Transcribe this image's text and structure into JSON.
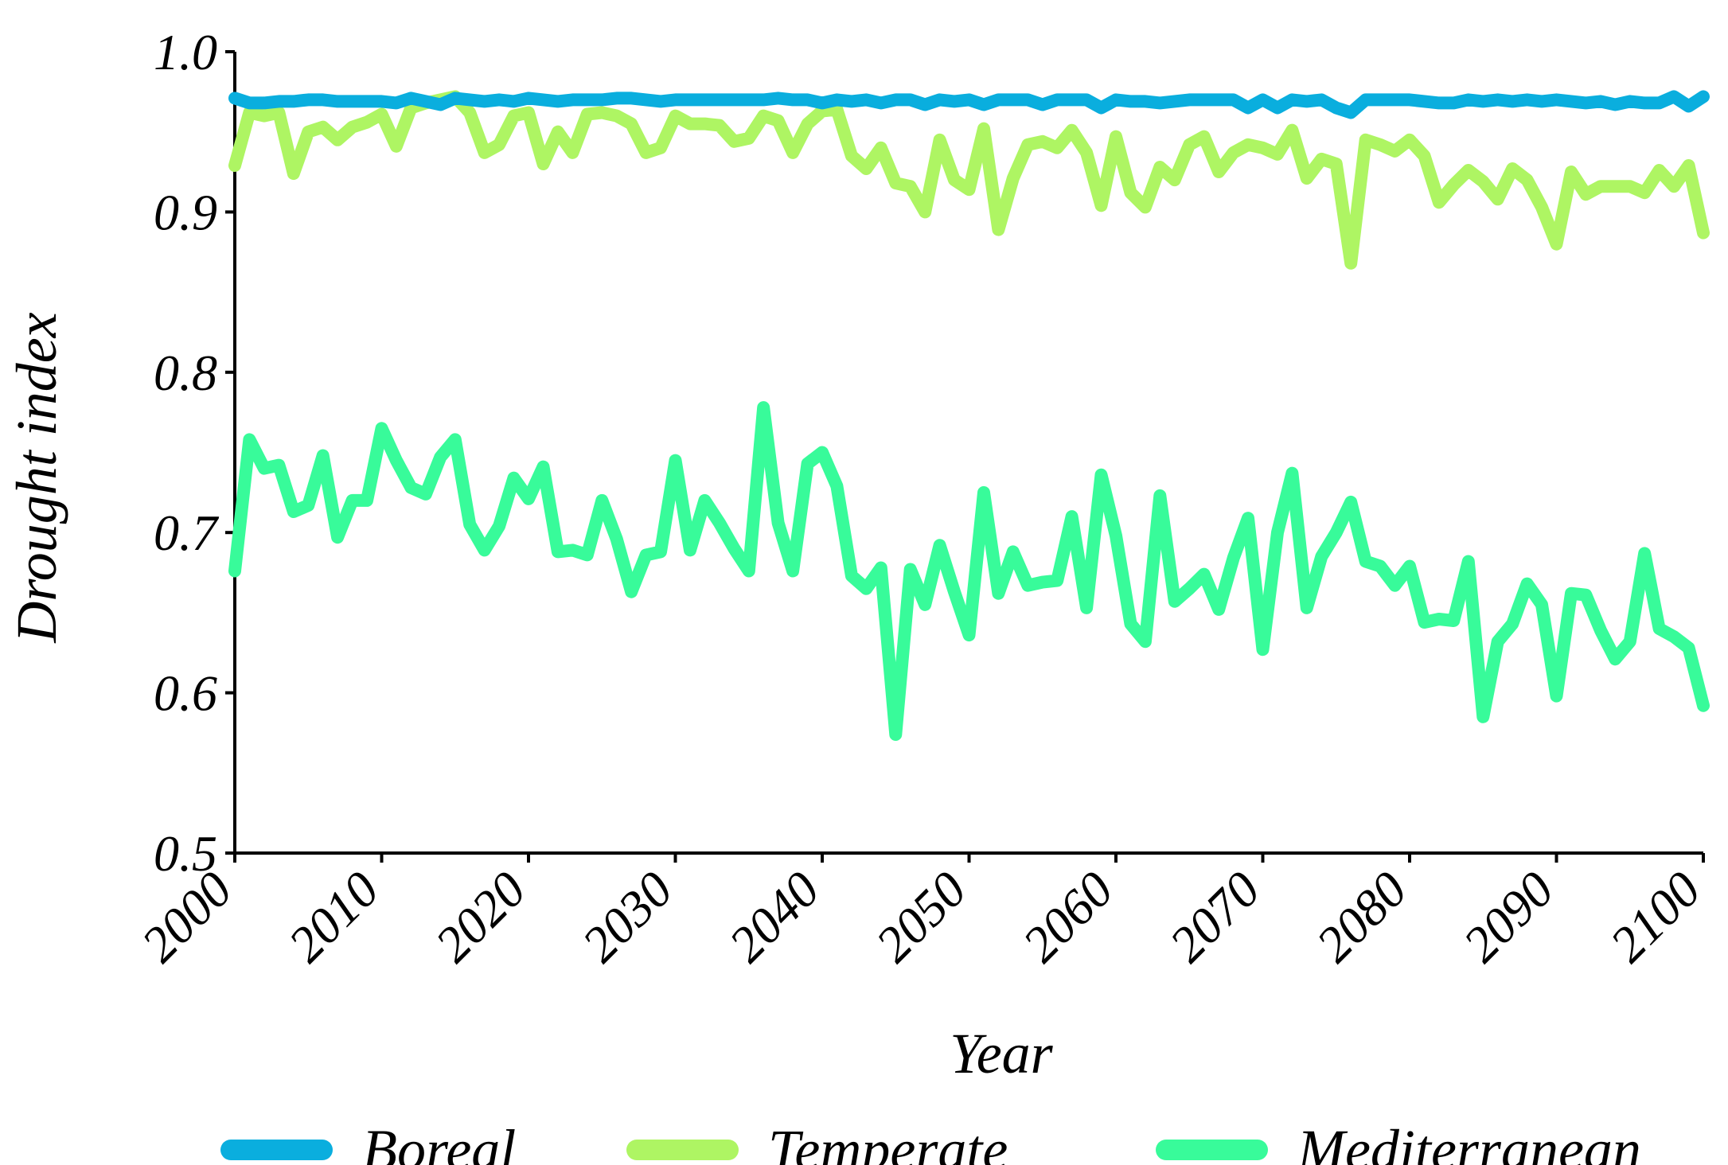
{
  "chart_data": {
    "type": "line",
    "xlabel": "Year",
    "ylabel": "Drought index",
    "xlim": [
      2000,
      2100
    ],
    "ylim": [
      0.5,
      1.0
    ],
    "x_ticks": [
      2000,
      2010,
      2020,
      2030,
      2040,
      2050,
      2060,
      2070,
      2080,
      2090,
      2100
    ],
    "x_tick_labels": [
      "2000",
      "2010",
      "2020",
      "2030",
      "2040",
      "2050",
      "2060",
      "2070",
      "2080",
      "2090",
      "2100"
    ],
    "y_ticks": [
      0.5,
      0.6,
      0.7,
      0.8,
      0.9,
      1.0
    ],
    "y_tick_labels": [
      "0.5",
      "0.6",
      "0.7",
      "0.8",
      "0.9",
      "1.0"
    ],
    "grid": false,
    "legend_position": "bottom",
    "x": [
      2000,
      2001,
      2002,
      2003,
      2004,
      2005,
      2006,
      2007,
      2008,
      2009,
      2010,
      2011,
      2012,
      2013,
      2014,
      2015,
      2016,
      2017,
      2018,
      2019,
      2020,
      2021,
      2022,
      2023,
      2024,
      2025,
      2026,
      2027,
      2028,
      2029,
      2030,
      2031,
      2032,
      2033,
      2034,
      2035,
      2036,
      2037,
      2038,
      2039,
      2040,
      2041,
      2042,
      2043,
      2044,
      2045,
      2046,
      2047,
      2048,
      2049,
      2050,
      2051,
      2052,
      2053,
      2054,
      2055,
      2056,
      2057,
      2058,
      2059,
      2060,
      2061,
      2062,
      2063,
      2064,
      2065,
      2066,
      2067,
      2068,
      2069,
      2070,
      2071,
      2072,
      2073,
      2074,
      2075,
      2076,
      2077,
      2078,
      2079,
      2080,
      2081,
      2082,
      2083,
      2084,
      2085,
      2086,
      2087,
      2088,
      2089,
      2090,
      2091,
      2092,
      2093,
      2094,
      2095,
      2096,
      2097,
      2098,
      2099,
      2100
    ],
    "series": [
      {
        "name": "Boreal",
        "color": "#0aaede",
        "values": [
          0.971,
          0.968,
          0.968,
          0.969,
          0.969,
          0.97,
          0.97,
          0.969,
          0.969,
          0.969,
          0.969,
          0.968,
          0.971,
          0.969,
          0.967,
          0.971,
          0.97,
          0.969,
          0.97,
          0.969,
          0.971,
          0.97,
          0.969,
          0.97,
          0.97,
          0.97,
          0.971,
          0.971,
          0.97,
          0.969,
          0.97,
          0.97,
          0.97,
          0.97,
          0.97,
          0.97,
          0.97,
          0.971,
          0.97,
          0.97,
          0.968,
          0.97,
          0.969,
          0.97,
          0.968,
          0.97,
          0.97,
          0.967,
          0.97,
          0.969,
          0.97,
          0.967,
          0.97,
          0.97,
          0.97,
          0.967,
          0.97,
          0.97,
          0.97,
          0.965,
          0.97,
          0.969,
          0.969,
          0.968,
          0.969,
          0.97,
          0.97,
          0.97,
          0.97,
          0.965,
          0.97,
          0.965,
          0.97,
          0.969,
          0.97,
          0.965,
          0.962,
          0.97,
          0.97,
          0.97,
          0.97,
          0.969,
          0.968,
          0.968,
          0.97,
          0.969,
          0.97,
          0.969,
          0.97,
          0.969,
          0.97,
          0.969,
          0.968,
          0.969,
          0.967,
          0.969,
          0.968,
          0.968,
          0.972,
          0.966,
          0.972
        ]
      },
      {
        "name": "Temperate",
        "color": "#aef563",
        "values": [
          0.929,
          0.962,
          0.96,
          0.962,
          0.924,
          0.95,
          0.953,
          0.945,
          0.953,
          0.956,
          0.961,
          0.941,
          0.965,
          0.968,
          0.97,
          0.972,
          0.962,
          0.937,
          0.942,
          0.96,
          0.962,
          0.93,
          0.95,
          0.937,
          0.961,
          0.962,
          0.96,
          0.955,
          0.937,
          0.94,
          0.96,
          0.955,
          0.955,
          0.954,
          0.944,
          0.946,
          0.96,
          0.957,
          0.937,
          0.955,
          0.963,
          0.964,
          0.935,
          0.927,
          0.94,
          0.918,
          0.916,
          0.9,
          0.945,
          0.92,
          0.914,
          0.952,
          0.889,
          0.921,
          0.942,
          0.944,
          0.94,
          0.951,
          0.937,
          0.904,
          0.947,
          0.912,
          0.903,
          0.928,
          0.92,
          0.942,
          0.947,
          0.925,
          0.937,
          0.942,
          0.94,
          0.936,
          0.951,
          0.921,
          0.933,
          0.93,
          0.868,
          0.945,
          0.942,
          0.938,
          0.945,
          0.935,
          0.906,
          0.917,
          0.926,
          0.919,
          0.908,
          0.927,
          0.92,
          0.903,
          0.88,
          0.925,
          0.911,
          0.916,
          0.916,
          0.916,
          0.912,
          0.926,
          0.916,
          0.929,
          0.887
        ]
      },
      {
        "name": "Mediterranean",
        "color": "#38fb9a",
        "values": [
          0.676,
          0.758,
          0.74,
          0.742,
          0.713,
          0.717,
          0.748,
          0.697,
          0.72,
          0.72,
          0.765,
          0.745,
          0.728,
          0.724,
          0.747,
          0.758,
          0.705,
          0.689,
          0.704,
          0.734,
          0.721,
          0.741,
          0.688,
          0.689,
          0.686,
          0.72,
          0.696,
          0.663,
          0.686,
          0.688,
          0.745,
          0.689,
          0.72,
          0.706,
          0.69,
          0.676,
          0.778,
          0.706,
          0.676,
          0.743,
          0.75,
          0.729,
          0.673,
          0.665,
          0.678,
          0.574,
          0.677,
          0.655,
          0.692,
          0.663,
          0.636,
          0.725,
          0.662,
          0.688,
          0.667,
          0.669,
          0.67,
          0.71,
          0.653,
          0.736,
          0.698,
          0.643,
          0.632,
          0.723,
          0.657,
          0.665,
          0.674,
          0.652,
          0.684,
          0.709,
          0.627,
          0.7,
          0.737,
          0.653,
          0.685,
          0.7,
          0.719,
          0.682,
          0.679,
          0.667,
          0.679,
          0.644,
          0.646,
          0.645,
          0.682,
          0.585,
          0.632,
          0.643,
          0.668,
          0.655,
          0.598,
          0.662,
          0.661,
          0.639,
          0.621,
          0.632,
          0.687,
          0.64,
          0.635,
          0.628,
          0.592
        ]
      }
    ]
  }
}
